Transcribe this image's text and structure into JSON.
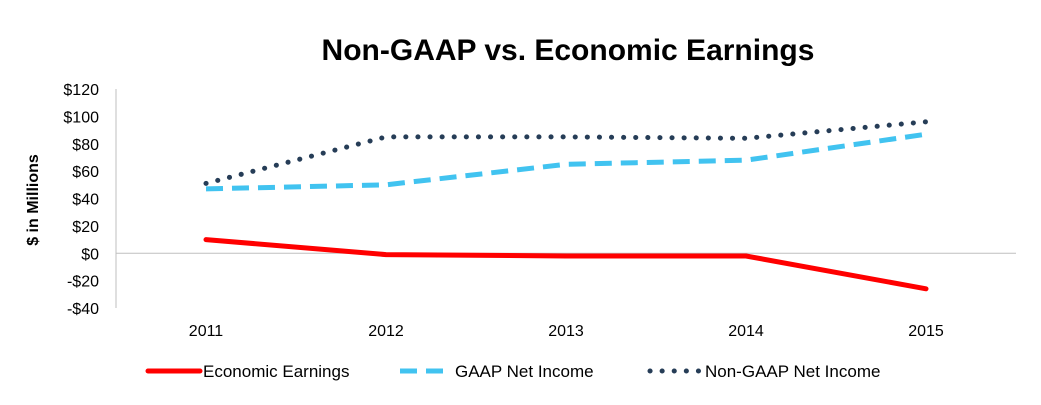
{
  "chart_data": {
    "type": "line",
    "title": "Non-GAAP vs. Economic Earnings",
    "ylabel": "$ in Millions",
    "xlabel": "",
    "categories": [
      "2011",
      "2012",
      "2013",
      "2014",
      "2015"
    ],
    "ylim": [
      -40,
      120
    ],
    "yticks": [
      120,
      100,
      80,
      60,
      40,
      20,
      0,
      -20,
      -40
    ],
    "ytick_labels": [
      "$120",
      "$100",
      "$80",
      "$60",
      "$40",
      "$20",
      "$0",
      "-$20",
      "-$40"
    ],
    "legend_position": "bottom",
    "series": [
      {
        "name": "Economic Earnings",
        "values": [
          10,
          -1,
          -2,
          -2,
          -26
        ],
        "color": "#ff0000",
        "style": "solid"
      },
      {
        "name": "GAAP Net Income",
        "values": [
          47,
          50,
          65,
          68,
          87
        ],
        "color": "#41c3f0",
        "style": "dashed"
      },
      {
        "name": "Non-GAAP Net Income",
        "values": [
          51,
          85,
          85,
          84,
          96
        ],
        "color": "#263d57",
        "style": "dotted"
      }
    ]
  }
}
